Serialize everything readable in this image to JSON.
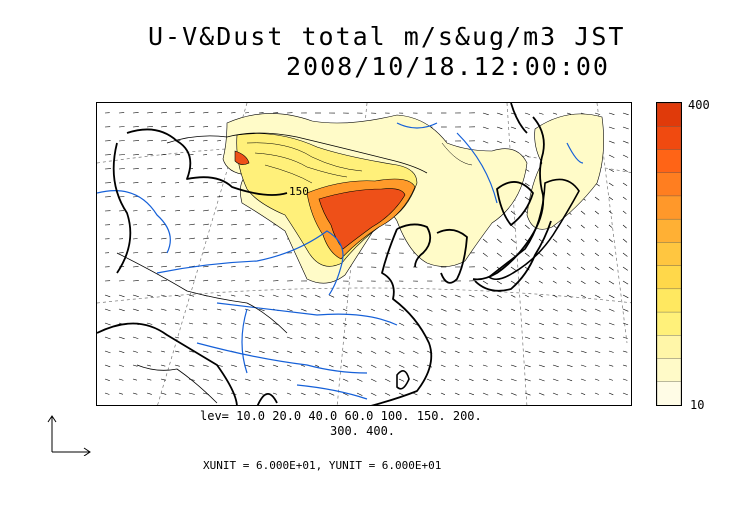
{
  "title": {
    "line1": "U-V&Dust total m/s&ug/m3 JST",
    "line2": "2008/10/18.12:00:00"
  },
  "colorbar": {
    "max_label": "400",
    "min_label": "10",
    "colors": [
      "#fffce6",
      "#fffac8",
      "#fff6a8",
      "#fff17a",
      "#ffe860",
      "#ffd84a",
      "#ffc640",
      "#ffb034",
      "#ff982a",
      "#ff7e20",
      "#ff6416",
      "#f04a10",
      "#e03a0a"
    ]
  },
  "legend": {
    "lev_line1": "lev= 10.0 20.0 40.0 60.0 100. 150. 200.",
    "lev_line2": "300. 400.",
    "units": "XUNIT = 6.000E+01, YUNIT = 6.000E+01"
  },
  "map": {
    "contour_label": "150",
    "dust_fill_light": "#fffbc8",
    "dust_fill_mid": "#fff07a",
    "dust_fill_high": "#ff9a2a",
    "dust_fill_peak": "#ee5018",
    "river_color": "#1560d8",
    "coast_color": "#000000"
  }
}
